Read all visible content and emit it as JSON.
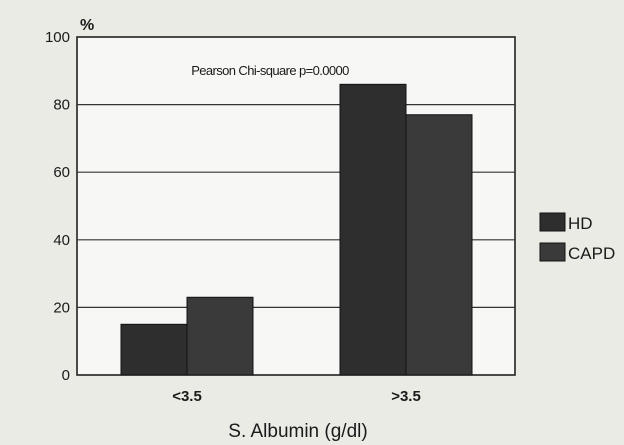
{
  "chart_data": {
    "type": "bar",
    "categories": [
      "<3.5",
      ">3.5"
    ],
    "series": [
      {
        "name": "HD",
        "values": [
          15,
          86
        ],
        "color": "#2e2e2e"
      },
      {
        "name": "CAPD",
        "values": [
          23,
          77
        ],
        "color": "#3a3a3a"
      }
    ],
    "xlabel": "S. Albumin (g/dl)",
    "ylabel": "%",
    "ylim": [
      0,
      100
    ],
    "yticks": [
      0,
      20,
      40,
      60,
      80,
      100
    ],
    "annotation": "Pearson Chi-square p=0.0000",
    "grid": true,
    "legend_position": "right"
  }
}
